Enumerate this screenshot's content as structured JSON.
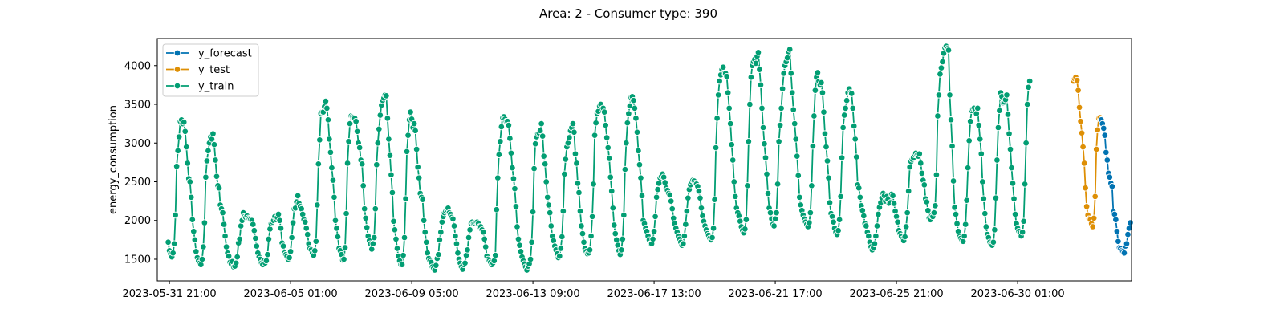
{
  "chart_data": {
    "type": "line",
    "title": "Area: 2 - Consumer type: 390",
    "xlabel": "",
    "ylabel": "energy_consumption",
    "x_start": "2023-05-31 20:00",
    "x_step_hours": 1,
    "xlim": [
      "2023-05-31 11:00",
      "2023-07-03 23:00"
    ],
    "ylim": [
      1220,
      4350
    ],
    "grid": false,
    "legend_position": "top-left",
    "x_ticks": [
      "2023-05-31 21:00",
      "2023-06-05 01:00",
      "2023-06-09 05:00",
      "2023-06-13 09:00",
      "2023-06-17 13:00",
      "2023-06-21 17:00",
      "2023-06-25 21:00",
      "2023-06-30 01:00"
    ],
    "y_ticks": [
      1500,
      2000,
      2500,
      3000,
      3500,
      4000
    ],
    "day_profile_note": "",
    "series": [
      {
        "name": "y_train",
        "color": "#029e73",
        "values": [
          1720,
          1610,
          1570,
          1530,
          1580,
          1700,
          2070,
          2700,
          2900,
          3080,
          3280,
          3300,
          3250,
          3270,
          3150,
          2950,
          2740,
          2540,
          2500,
          2300,
          2010,
          1860,
          1750,
          1600,
          1520,
          1480,
          1450,
          1430,
          1500,
          1660,
          1970,
          2560,
          2770,
          2900,
          3000,
          3080,
          3050,
          3120,
          2980,
          2780,
          2570,
          2450,
          2420,
          2200,
          2150,
          2100,
          1950,
          1800,
          1660,
          1580,
          1540,
          1460,
          1440,
          1470,
          1400,
          1410,
          1450,
          1530,
          1710,
          1760,
          1930,
          2000,
          2100,
          2050,
          2040,
          2060,
          2030,
          2020,
          2010,
          2000,
          1950,
          1870,
          1770,
          1670,
          1580,
          1530,
          1500,
          1450,
          1430,
          1480,
          1450,
          1480,
          1560,
          1760,
          1890,
          1960,
          1980,
          2000,
          2050,
          2010,
          2040,
          2080,
          2000,
          1900,
          1710,
          1670,
          1580,
          1560,
          1540,
          1500,
          1520,
          1600,
          1780,
          1970,
          2150,
          2160,
          2240,
          2320,
          2220,
          2180,
          2150,
          2080,
          2010,
          1980,
          1900,
          1820,
          1700,
          1640,
          1620,
          1580,
          1550,
          1610,
          1730,
          2200,
          2730,
          3040,
          3380,
          3400,
          3400,
          3470,
          3540,
          3450,
          3300,
          3050,
          2880,
          2680,
          2520,
          2300,
          2000,
          1900,
          1790,
          1640,
          1610,
          1560,
          1490,
          1500,
          1650,
          2090,
          2740,
          3020,
          3250,
          3350,
          3340,
          3330,
          3320,
          3280,
          3150,
          3000,
          2940,
          2780,
          2730,
          2450,
          2150,
          2030,
          1910,
          1800,
          1740,
          1700,
          1630,
          1700,
          1780,
          2150,
          2720,
          3000,
          3180,
          3360,
          3490,
          3550,
          3580,
          3620,
          3610,
          3320,
          3050,
          2840,
          2590,
          2360,
          1990,
          1880,
          1760,
          1640,
          1540,
          1480,
          1430,
          1430,
          1550,
          1780,
          2280,
          2890,
          3100,
          3300,
          3400,
          3310,
          3200,
          3250,
          3160,
          2920,
          2690,
          2550,
          2350,
          2300,
          2270,
          2000,
          1850,
          1720,
          1580,
          1510,
          1480,
          1460,
          1400,
          1380,
          1360,
          1420,
          1510,
          1560,
          1750,
          1850,
          1980,
          2050,
          2100,
          2120,
          2140,
          2160,
          2100,
          2080,
          2040,
          2020,
          1930,
          1800,
          1700,
          1580,
          1500,
          1450,
          1400,
          1370,
          1430,
          1450,
          1550,
          1620,
          1780,
          1880,
          1960,
          1980,
          1960,
          1960,
          1980,
          1980,
          1960,
          1920,
          1920,
          1880,
          1850,
          1760,
          1660,
          1540,
          1500,
          1480,
          1460,
          1430,
          1450,
          1480,
          1550,
          2140,
          2550,
          2850,
          3020,
          3210,
          3330,
          3340,
          3310,
          3280,
          3280,
          3230,
          3060,
          2870,
          2680,
          2540,
          2410,
          2180,
          1920,
          1760,
          1680,
          1600,
          1530,
          1480,
          1440,
          1400,
          1360,
          1410,
          1440,
          1500,
          1720,
          2110,
          2670,
          2990,
          3080,
          3120,
          3130,
          3160,
          3250,
          3090,
          2830,
          2730,
          2500,
          2300,
          2200,
          2100,
          1930,
          1800,
          1740,
          1670,
          1620,
          1570,
          1520,
          1540,
          1640,
          1790,
          2120,
          2600,
          2790,
          2950,
          3000,
          3070,
          3160,
          3200,
          3250,
          3140,
          2860,
          2740,
          2480,
          2360,
          2120,
          1930,
          1830,
          1720,
          1640,
          1600,
          1570,
          1580,
          1620,
          1800,
          2050,
          2470,
          3100,
          3260,
          3380,
          3410,
          3480,
          3500,
          3440,
          3450,
          3400,
          3230,
          3070,
          2940,
          2800,
          2560,
          2380,
          2160,
          1940,
          1830,
          1750,
          1680,
          1610,
          1560,
          1620,
          1760,
          2070,
          2660,
          3000,
          3260,
          3380,
          3480,
          3590,
          3600,
          3550,
          3450,
          3320,
          3140,
          2900,
          2720,
          2550,
          2320,
          2000,
          1960,
          1900,
          1860,
          1800,
          1750,
          1700,
          1700,
          1760,
          1860,
          2050,
          2300,
          2400,
          2480,
          2550,
          2570,
          2600,
          2560,
          2490,
          2420,
          2390,
          2350,
          2330,
          2250,
          2150,
          2030,
          1960,
          1900,
          1850,
          1800,
          1760,
          1720,
          1680,
          1700,
          1800,
          1950,
          2120,
          2290,
          2400,
          2460,
          2500,
          2520,
          2510,
          2480,
          2470,
          2440,
          2380,
          2290,
          2160,
          2060,
          1990,
          1930,
          1880,
          1830,
          1810,
          1770,
          1750,
          1780,
          1900,
          2270,
          2940,
          3320,
          3620,
          3800,
          3880,
          3950,
          3980,
          3900,
          3900,
          3860,
          3650,
          3450,
          3250,
          2980,
          2780,
          2500,
          2310,
          2160,
          2100,
          2060,
          1990,
          1920,
          1870,
          1840,
          1890,
          2010,
          2450,
          3020,
          3500,
          3850,
          4000,
          4050,
          4080,
          4030,
          4120,
          4170,
          3950,
          3750,
          3450,
          3200,
          2990,
          2810,
          2600,
          2350,
          2160,
          2100,
          2020,
          1950,
          1930,
          2020,
          2100,
          2470,
          3020,
          3230,
          3450,
          3700,
          3900,
          4000,
          4050,
          4100,
          4180,
          4210,
          3900,
          3650,
          3430,
          3250,
          3050,
          2830,
          2580,
          2300,
          2200,
          2130,
          2070,
          2020,
          1980,
          1950,
          1920,
          1970,
          2100,
          2450,
          2960,
          3350,
          3680,
          3850,
          3910,
          3800,
          3750,
          3780,
          3650,
          3400,
          3120,
          2950,
          2770,
          2550,
          2230,
          2090,
          2050,
          1980,
          1900,
          1850,
          1820,
          1870,
          2010,
          2310,
          2810,
          3200,
          3360,
          3450,
          3550,
          3650,
          3700,
          3650,
          3640,
          3450,
          3220,
          3050,
          2820,
          2460,
          2420,
          2300,
          2190,
          2130,
          2060,
          1960,
          1930,
          1850,
          1800,
          1720,
          1660,
          1620,
          1650,
          1700,
          1800,
          1930,
          2080,
          2170,
          2230,
          2290,
          2350,
          2320,
          2250,
          2310,
          2270,
          2220,
          2230,
          2340,
          2320,
          2220,
          2120,
          2050,
          1980,
          1870,
          1830,
          1800,
          1760,
          1740,
          1790,
          1920,
          2100,
          2380,
          2690,
          2760,
          2790,
          2810,
          2850,
          2870,
          2840,
          2830,
          2860,
          2740,
          2610,
          2520,
          2460,
          2280,
          2240,
          2130,
          2030,
          2010,
          2060,
          2050,
          2100,
          2190,
          2590,
          3350,
          3620,
          3890,
          3970,
          4050,
          4160,
          4230,
          4250,
          4220,
          4200,
          3620,
          3300,
          2960,
          2510,
          2170,
          2080,
          1960,
          1860,
          1790,
          1770,
          1750,
          1730,
          1800,
          1950,
          2260,
          2680,
          3030,
          3280,
          3420,
          3440,
          3450,
          3420,
          3380,
          3450,
          3230,
          3050,
          2860,
          2500,
          2280,
          2090,
          1920,
          1820,
          1780,
          1720,
          1700,
          1680,
          1720,
          1880,
          2290,
          2780,
          3200,
          3420,
          3650,
          3600,
          3520,
          3530,
          3560,
          3620,
          3370,
          3120,
          2920,
          2680,
          2480,
          2280,
          2080,
          1960,
          1900,
          1860,
          1840,
          1800,
          1850,
          1990,
          2470,
          3000,
          3500,
          3720,
          3800
        ]
      },
      {
        "name": "y_test",
        "color": "#de8f05",
        "start_index": 747,
        "values": [
          3800,
          3830,
          3850,
          3810,
          3680,
          3460,
          3280,
          3130,
          2950,
          2740,
          2420,
          2180,
          2070,
          2020,
          2010,
          1960,
          1920,
          2030,
          2310,
          2920,
          3170,
          3320,
          3330,
          3300
        ]
      },
      {
        "name": "y_forecast",
        "color": "#0173b2",
        "start_index": 770,
        "values": [
          3300,
          3250,
          3190,
          3100,
          2880,
          2780,
          2610,
          2560,
          2480,
          2440,
          2110,
          2080,
          2010,
          1860,
          1730,
          1650,
          1640,
          1610,
          1600,
          1580,
          1670,
          1700,
          1820,
          1900,
          1970
        ]
      }
    ]
  }
}
